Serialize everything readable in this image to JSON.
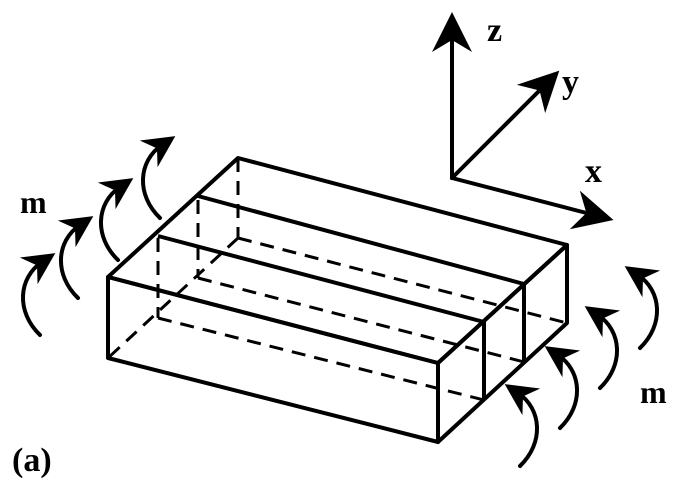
{
  "figure": {
    "caption": "(a)",
    "axes": {
      "z": "z",
      "y": "y",
      "x": "x"
    },
    "moment_labels": {
      "left": "m",
      "right": "m"
    }
  }
}
